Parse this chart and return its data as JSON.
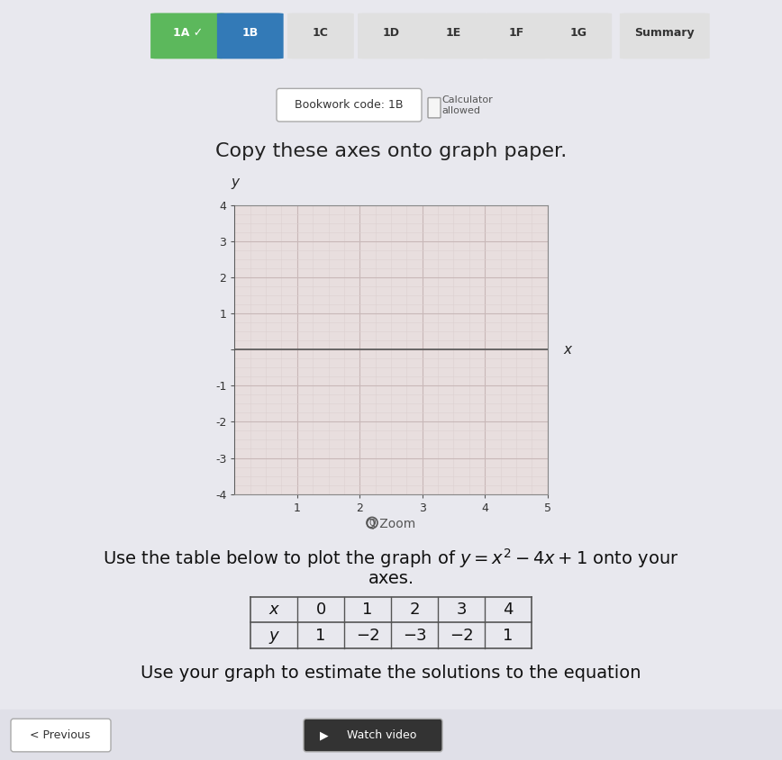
{
  "bg_color": "#d0d0d8",
  "page_bg": "#e8e8ee",
  "tab_items": [
    "1A",
    "1B",
    "1C",
    "1D",
    "1E",
    "1F",
    "1G",
    "Summary"
  ],
  "tab_active_check": "1A",
  "tab_active": "1B",
  "bookwork_code": "Bookwork code: 1B",
  "calculator_text": "Calculator\nallowed",
  "main_instruction": "Copy these axes onto graph paper.",
  "graph_xlim": [
    0,
    5
  ],
  "graph_ylim": [
    -4,
    4
  ],
  "graph_xticks": [
    1,
    2,
    3,
    4,
    5
  ],
  "graph_yticks": [
    -4,
    -3,
    -2,
    -1,
    0,
    1,
    2,
    3,
    4
  ],
  "xlabel": "x",
  "ylabel": "y",
  "grid_color": "#c8b8b8",
  "grid_minor_color": "#ddd0d0",
  "axis_color": "#555555",
  "graph_bg": "#e8dede",
  "zoom_text": "Q Zoom",
  "use_table_text1": "Use the table below to plot the graph of",
  "equation": "y = x² − 4x + 1",
  "use_table_text2": "onto your",
  "axes_text": "axes.",
  "table_x_label": "x",
  "table_y_label": "y",
  "table_x_values": [
    "0",
    "1",
    "2",
    "3",
    "4"
  ],
  "table_y_values": [
    "1",
    "−2",
    "−3",
    "−2",
    "1"
  ],
  "bottom_text": "Use your graph to estimate the solutions to the equation",
  "prev_button": "< Previous",
  "watch_video": "Watch video",
  "tab_bar_color": "#f0f0f0",
  "tab_1a_color": "#5cb85c",
  "tab_1b_color": "#337ab7",
  "tab_other_color": "#e0e0e0",
  "tab_text_color": "#333333"
}
